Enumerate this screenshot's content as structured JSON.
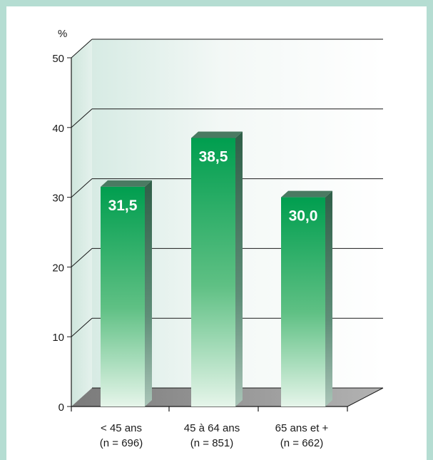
{
  "chart_data": {
    "type": "bar",
    "ylabel": "%",
    "ylim": [
      0,
      50
    ],
    "yticks": [
      0,
      10,
      20,
      30,
      40,
      50
    ],
    "categories": [
      {
        "line1": "< 45 ans",
        "line2": "(n = 696)"
      },
      {
        "line1": "45 à 64 ans",
        "line2": "(n = 851)"
      },
      {
        "line1": "65 ans et +",
        "line2": "(n = 662)"
      }
    ],
    "values": [
      31.5,
      38.5,
      30.0
    ],
    "value_labels": [
      "31,5",
      "38,5",
      "30,0"
    ],
    "grid": true,
    "colors": {
      "bar_top": "#009e4f",
      "bar_bottom": "#e6f5ea",
      "frame": "#b5ddd2",
      "floor": "#8a8a8a"
    }
  }
}
